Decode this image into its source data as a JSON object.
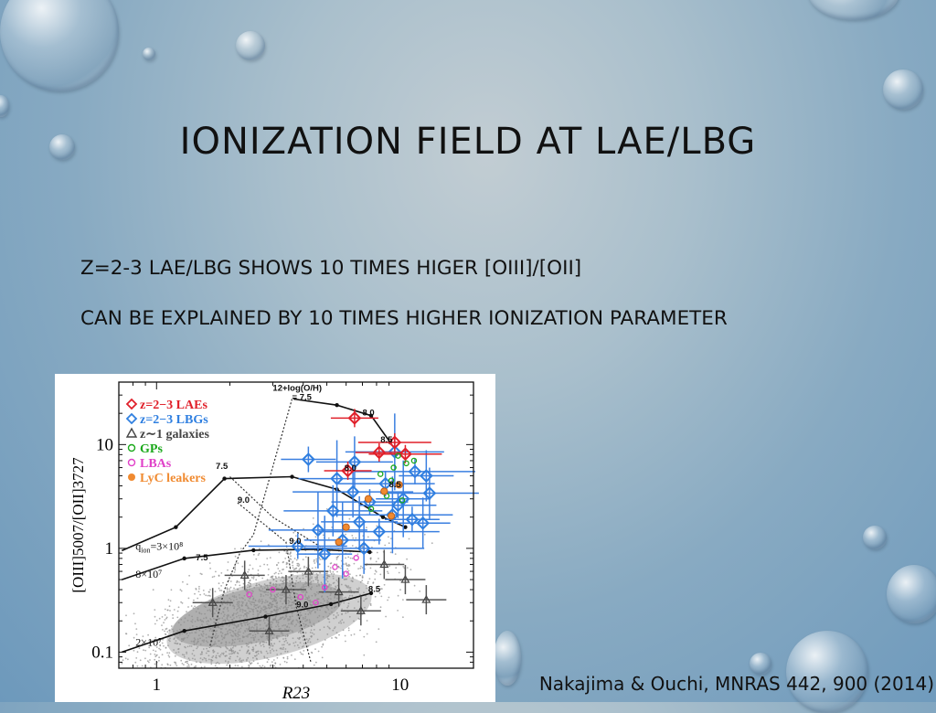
{
  "slide": {
    "title": "Ionization field at LAE/LBG",
    "bullets": [
      "z=2-3 LAE/LBG shows 10 times higer [OIII]/[OII]",
      "Can be explained by 10 times higher ionization parameter"
    ],
    "citation": "Nakajima & Ouchi, MNRAS 442, 900 (2014)"
  },
  "chart_data": {
    "type": "scatter",
    "title": "",
    "xlabel": "R23",
    "ylabel": "[OIII]5007/[OII]3727",
    "xscale": "log",
    "yscale": "log",
    "xlim": [
      0.7,
      20
    ],
    "ylim": [
      0.07,
      40
    ],
    "xticks": [
      {
        "v": 1,
        "label": "1"
      },
      {
        "v": 10,
        "label": "10"
      }
    ],
    "yticks": [
      {
        "v": 0.1,
        "label": "0.1"
      },
      {
        "v": 1,
        "label": "1"
      },
      {
        "v": 10,
        "label": "10"
      }
    ],
    "legend_position": "top-left",
    "grid": false,
    "legend": [
      {
        "label": "z=2−3 LAEs",
        "marker": "diamond",
        "color": "#e0202a"
      },
      {
        "label": "z=2−3 LBGs",
        "marker": "diamond",
        "color": "#2f7fe0"
      },
      {
        "label": "z∼1 galaxies",
        "marker": "triangle",
        "color": "#444444"
      },
      {
        "label": "GPs",
        "marker": "circle",
        "color": "#1aa81a"
      },
      {
        "label": "LBAs",
        "marker": "circle",
        "color": "#e040c8"
      },
      {
        "label": "LyC leakers",
        "marker": "circle-filled",
        "color": "#f08a30"
      }
    ],
    "annotations": [
      {
        "text": "12+log(O/H)",
        "x": 3.0,
        "y": 33
      },
      {
        "text": "= 7.5",
        "x": 3.6,
        "y": 27
      },
      {
        "text": "8.0",
        "x": 7.0,
        "y": 19
      },
      {
        "text": "8.5",
        "x": 8.3,
        "y": 10.5
      },
      {
        "text": "7.5",
        "x": 1.75,
        "y": 5.8
      },
      {
        "text": "9.0",
        "x": 2.15,
        "y": 2.75
      },
      {
        "text": "9.0",
        "x": 3.5,
        "y": 1.1
      },
      {
        "text": "7.5",
        "x": 1.45,
        "y": 0.77
      },
      {
        "text": "9.0",
        "x": 3.75,
        "y": 0.27
      },
      {
        "text": "8.5",
        "x": 7.4,
        "y": 0.38
      },
      {
        "text": "8.0",
        "x": 5.9,
        "y": 5.6
      },
      {
        "text": "8.5",
        "x": 9.0,
        "y": 3.9
      }
    ],
    "ionization_labels": [
      {
        "text": "q",
        "sub": "ion",
        "value": "=3×10⁸",
        "x": 0.82,
        "y": 0.97
      },
      {
        "text": "8×10⁷",
        "x": 0.82,
        "y": 0.52
      },
      {
        "text": "2×10⁷",
        "x": 0.82,
        "y": 0.115
      }
    ],
    "models": [
      {
        "name": "",
        "points": [
          [
            0.72,
            0.95
          ],
          [
            1.2,
            1.6
          ],
          [
            1.9,
            4.7
          ],
          [
            3.6,
            4.9
          ],
          [
            5.5,
            3.7
          ],
          [
            8.5,
            2.0
          ],
          [
            10.5,
            1.6
          ]
        ]
      },
      {
        "name": "",
        "points": [
          [
            0.72,
            0.5
          ],
          [
            1.3,
            0.8
          ],
          [
            2.5,
            0.96
          ],
          [
            4.6,
            0.98
          ],
          [
            7.5,
            0.92
          ]
        ]
      },
      {
        "name": "",
        "points": [
          [
            0.72,
            0.1
          ],
          [
            1.3,
            0.16
          ],
          [
            2.8,
            0.22
          ],
          [
            5.2,
            0.29
          ],
          [
            7.6,
            0.37
          ]
        ]
      },
      {
        "name": "",
        "points": [
          [
            3.65,
            27.5
          ],
          [
            5.5,
            24
          ],
          [
            7.6,
            19
          ],
          [
            9.1,
            10.5
          ]
        ]
      }
    ],
    "metallicity_tracks": [
      {
        "name": "",
        "points": [
          [
            3.6,
            27.5
          ],
          [
            2.5,
            1.35
          ],
          [
            2.2,
            0.9
          ],
          [
            1.9,
            0.4
          ],
          [
            1.65,
            0.11
          ]
        ]
      },
      {
        "name": "",
        "points": [
          [
            2.15,
            2.75
          ],
          [
            3.4,
            1.15
          ],
          [
            3.75,
            0.27
          ],
          [
            4.3,
            0.08
          ]
        ]
      },
      {
        "name": "",
        "points": [
          [
            2.0,
            4.9
          ],
          [
            3.0,
            2.0
          ],
          [
            5.0,
            0.95
          ]
        ]
      }
    ],
    "lae_points": [
      [
        6.5,
        18
      ],
      [
        9.5,
        10.5
      ],
      [
        8.2,
        8.4
      ],
      [
        10.5,
        8.1
      ],
      [
        6.1,
        5.6
      ]
    ],
    "lbg_points": [
      [
        4.2,
        7.2
      ],
      [
        6.5,
        6.8
      ],
      [
        9.5,
        8.5
      ],
      [
        11.5,
        5.5
      ],
      [
        12.8,
        5.0
      ],
      [
        5.5,
        4.7
      ],
      [
        8.7,
        4.2
      ],
      [
        6.4,
        3.5
      ],
      [
        10.3,
        3.0
      ],
      [
        7.5,
        2.8
      ],
      [
        5.3,
        2.3
      ],
      [
        9.3,
        2.1
      ],
      [
        11.2,
        1.9
      ],
      [
        6.8,
        1.8
      ],
      [
        4.6,
        1.5
      ],
      [
        8.2,
        1.45
      ],
      [
        12.4,
        1.75
      ],
      [
        5.8,
        1.2
      ],
      [
        3.8,
        1.05
      ],
      [
        7.1,
        1.0
      ],
      [
        4.9,
        0.88
      ],
      [
        9.8,
        2.6
      ],
      [
        13.2,
        3.4
      ]
    ],
    "z1_points": [
      [
        2.3,
        0.55
      ],
      [
        4.2,
        0.6
      ],
      [
        5.6,
        0.38
      ],
      [
        6.9,
        0.25
      ],
      [
        8.6,
        0.7
      ],
      [
        10.5,
        0.5
      ],
      [
        2.9,
        0.16
      ],
      [
        1.7,
        0.3
      ],
      [
        3.4,
        0.4
      ],
      [
        12.8,
        0.32
      ]
    ],
    "gp_points": [
      [
        8.3,
        5.2
      ],
      [
        9.2,
        4.5
      ],
      [
        9.8,
        7.8
      ],
      [
        10.6,
        6.6
      ],
      [
        8.8,
        3.2
      ],
      [
        7.6,
        2.4
      ],
      [
        10.2,
        2.9
      ],
      [
        9.4,
        6.0
      ],
      [
        11.4,
        7.0
      ]
    ],
    "lba_points": [
      [
        2.4,
        0.36
      ],
      [
        3.0,
        0.4
      ],
      [
        3.9,
        0.34
      ],
      [
        4.9,
        0.42
      ],
      [
        6.0,
        0.57
      ],
      [
        5.4,
        0.66
      ],
      [
        6.6,
        0.81
      ],
      [
        4.5,
        0.3
      ]
    ],
    "lyc_points": [
      [
        6.0,
        1.6
      ],
      [
        5.6,
        1.15
      ],
      [
        9.2,
        2.05
      ],
      [
        8.6,
        3.55
      ],
      [
        9.9,
        4.1
      ],
      [
        7.4,
        3.0
      ]
    ]
  }
}
